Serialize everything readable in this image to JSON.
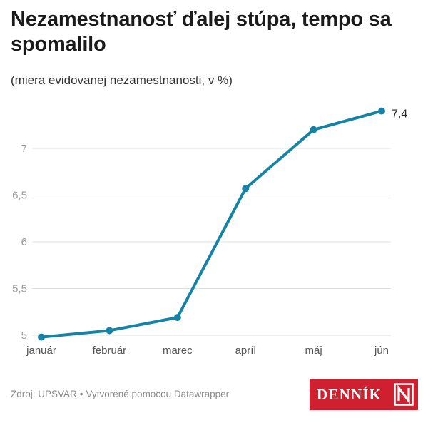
{
  "header": {
    "title": "Nezamestnanosť ďalej stúpa, tempo sa spomalilo",
    "subtitle": "(miera evidovanej nezamestnanosti, v %)"
  },
  "footer": {
    "source": "Zdroj: UPSVAR",
    "separator": "•",
    "credit": "Vytvorené pomocou Datawrapper"
  },
  "logo": {
    "text": "DENNÍK",
    "mark": "N",
    "color": "#d01f2e"
  },
  "colors": {
    "line": "#1583a6",
    "grid": "#e2e2e2",
    "axis_text": "#9a9a9a",
    "category_text": "#555555"
  },
  "chart_data": {
    "type": "line",
    "categories": [
      "január",
      "február",
      "marec",
      "apríl",
      "máj",
      "jún"
    ],
    "series": [
      {
        "values": [
          4.98,
          5.05,
          5.19,
          6.57,
          7.2,
          7.4
        ]
      }
    ],
    "last_value_label": "7,4",
    "y_ticks": [
      5,
      5.5,
      6,
      6.5,
      7
    ],
    "y_tick_labels": [
      "5",
      "5,5",
      "6",
      "6,5",
      "7"
    ],
    "ylim": [
      5,
      7.4
    ],
    "grid": true,
    "xlabel": "",
    "ylabel": ""
  }
}
